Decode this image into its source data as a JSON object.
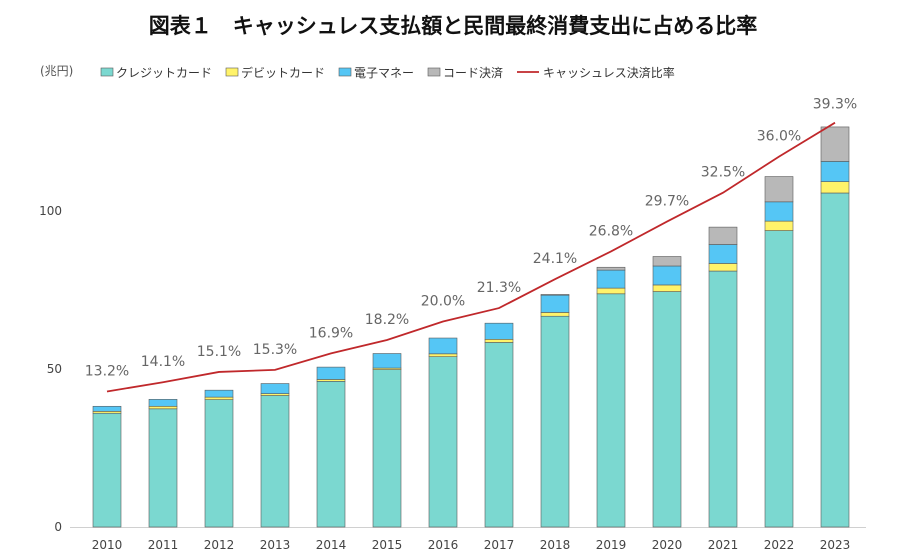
{
  "title": "図表１　キャッシュレス支払額と民間最終消費支出に占める比率",
  "unit_label": "(兆円)",
  "colors": {
    "credit": "#7BD8D0",
    "debit": "#FFF36A",
    "emoney": "#55C6F5",
    "code": "#B8B8B8",
    "ratio": "#C0282B",
    "bar_edge": "#5a5a5a"
  },
  "chart_data": {
    "type": "bar",
    "stacked": true,
    "categories": [
      "2010",
      "2011",
      "2012",
      "2013",
      "2014",
      "2015",
      "2016",
      "2017",
      "2018",
      "2019",
      "2020",
      "2021",
      "2022",
      "2023"
    ],
    "ylim": [
      0,
      130
    ],
    "yticks": [
      0,
      50,
      100
    ],
    "legend_position": "top",
    "series": [
      {
        "name": "クレジットカード",
        "key": "credit",
        "values": [
          36.0,
          37.4,
          40.3,
          41.6,
          46.1,
          49.8,
          53.9,
          58.4,
          66.7,
          73.8,
          74.5,
          81.0,
          93.8,
          105.7
        ]
      },
      {
        "name": "デビットカード",
        "key": "debit",
        "values": [
          0.6,
          0.8,
          0.8,
          0.6,
          0.6,
          0.5,
          0.9,
          1.0,
          1.2,
          1.8,
          2.1,
          2.4,
          3.0,
          3.6
        ]
      },
      {
        "name": "電子マネー",
        "key": "emoney",
        "values": [
          1.6,
          2.2,
          2.2,
          3.2,
          3.9,
          4.6,
          5.0,
          5.1,
          5.5,
          5.7,
          6.0,
          6.0,
          6.1,
          6.4
        ]
      },
      {
        "name": "コード決済",
        "key": "code",
        "values": [
          0,
          0,
          0,
          0,
          0,
          0,
          0,
          0,
          0.2,
          0.9,
          3.0,
          5.5,
          8.0,
          10.9
        ]
      }
    ],
    "line_series": {
      "name": "キャッシュレス決済比率",
      "key": "ratio",
      "values": [
        13.2,
        14.1,
        15.1,
        15.3,
        16.9,
        18.2,
        20.0,
        21.3,
        24.1,
        26.8,
        29.7,
        32.5,
        36.0,
        39.3
      ],
      "labels": [
        "13.2%",
        "14.1%",
        "15.1%",
        "15.3%",
        "16.9%",
        "18.2%",
        "20.0%",
        "21.3%",
        "24.1%",
        "26.8%",
        "29.7%",
        "32.5%",
        "36.0%",
        "39.3%"
      ],
      "highlight_last": true
    }
  }
}
